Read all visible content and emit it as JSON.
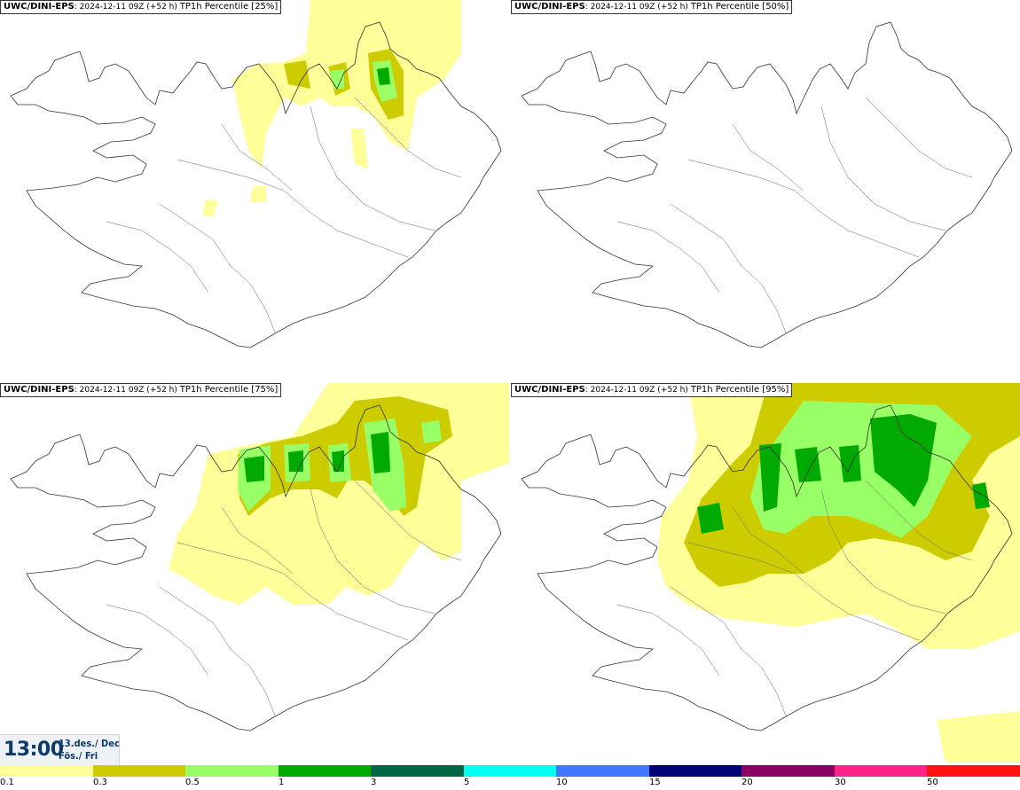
{
  "panels": [
    {
      "model": "UWC/DINI-EPS",
      "run": ": 2024-12-11 09Z (+52 h)",
      "product": "TP1h Percentile [25%]"
    },
    {
      "model": "UWC/DINI-EPS",
      "run": ": 2024-12-11 09Z (+52 h)",
      "product": "TP1h Percentile [50%]"
    },
    {
      "model": "UWC/DINI-EPS",
      "run": ": 2024-12-11 09Z (+52 h)",
      "product": "TP1h Percentile [75%]"
    },
    {
      "model": "UWC/DINI-EPS",
      "run": ": 2024-12-11 09Z (+52 h)",
      "product": "TP1h Percentile [95%]"
    }
  ],
  "valid_time": {
    "time": "13:00",
    "date": "13.des./ Dec",
    "day": "Fös./ Fri"
  },
  "legend": {
    "colors": [
      "#ffff99",
      "#cccc00",
      "#99ff66",
      "#00aa00",
      "#006644",
      "#00ffee",
      "#4477ff",
      "#000077",
      "#880066",
      "#ff2288",
      "#ff1111"
    ],
    "labels": [
      "0.1",
      "0.3",
      "0.5",
      "1",
      "3",
      "5",
      "10",
      "15",
      "20",
      "30",
      "50"
    ]
  }
}
